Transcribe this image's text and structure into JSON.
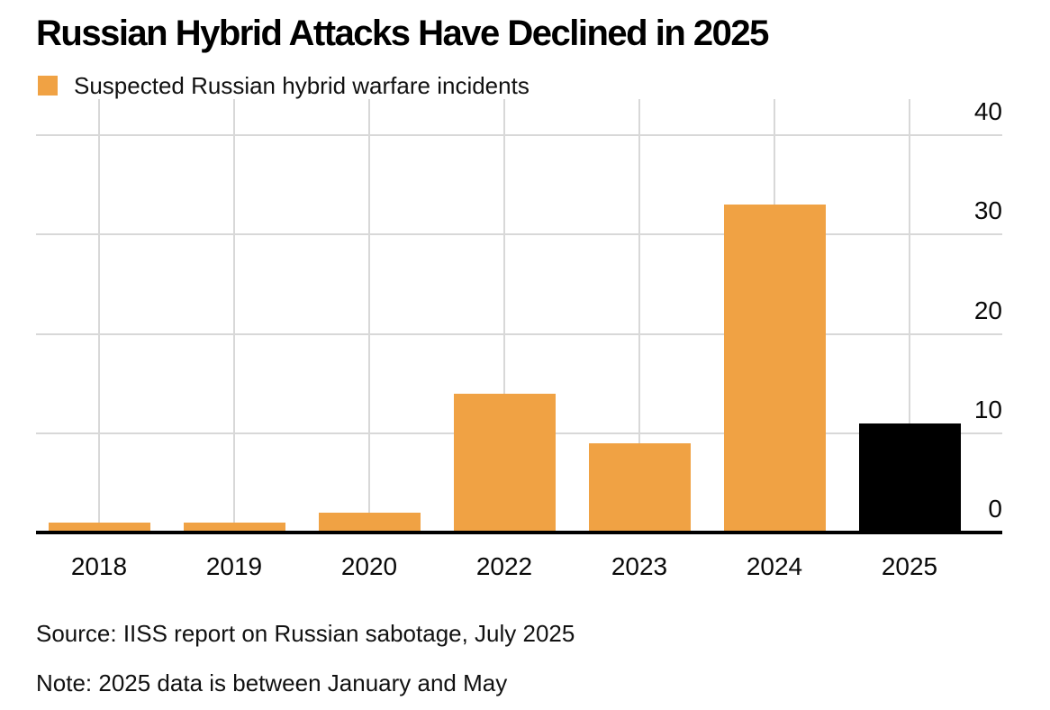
{
  "title": "Russian Hybrid Attacks Have Declined in 2025",
  "legend": {
    "label": "Suspected Russian hybrid warfare incidents",
    "swatch_color": "#F0A244"
  },
  "chart_data": {
    "type": "bar",
    "title": "Russian Hybrid Attacks Have Declined in 2025",
    "series_name": "Suspected Russian hybrid warfare incidents",
    "categories": [
      "2018",
      "2019",
      "2020",
      "2022",
      "2023",
      "2024",
      "2025"
    ],
    "values": [
      1,
      1,
      2,
      14,
      9,
      33,
      11
    ],
    "bar_colors": [
      "#F0A244",
      "#F0A244",
      "#F0A244",
      "#F0A244",
      "#F0A244",
      "#F0A244",
      "#000000"
    ],
    "y_ticks": [
      0,
      10,
      20,
      30,
      40
    ],
    "ylim": [
      0,
      43.6
    ],
    "xlabel": "",
    "ylabel": "",
    "y_axis_side": "right",
    "legend_position": "top-left",
    "grid": {
      "horizontal": true,
      "vertical_at_bar_centers": true
    },
    "note_missing_category": "2021 not shown"
  },
  "footer": {
    "source": "Source: IISS report on Russian sabotage, July 2025",
    "note": "Note: 2025 data is between January and May"
  },
  "colors": {
    "accent_orange": "#F0A244",
    "highlight_black": "#000000",
    "gridline": "#D8D8D8",
    "axis": "#000000",
    "text": "#000000",
    "background": "#FFFFFF"
  }
}
